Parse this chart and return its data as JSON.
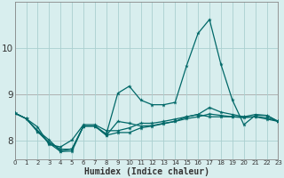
{
  "xlabel": "Humidex (Indice chaleur)",
  "background_color": "#d8eeee",
  "grid_color": "#aacfcf",
  "line_color": "#006868",
  "red_line_y": 9.0,
  "x_values": [
    0,
    1,
    2,
    3,
    4,
    5,
    6,
    7,
    8,
    9,
    10,
    11,
    12,
    13,
    14,
    15,
    16,
    17,
    18,
    19,
    20,
    21,
    22,
    23
  ],
  "series": [
    [
      8.6,
      8.48,
      8.2,
      7.95,
      7.77,
      7.78,
      8.32,
      8.32,
      8.15,
      9.03,
      9.18,
      8.88,
      8.78,
      8.78,
      8.83,
      9.62,
      10.32,
      10.62,
      9.65,
      8.88,
      8.35,
      8.55,
      8.55,
      8.42
    ],
    [
      8.6,
      8.48,
      8.2,
      7.97,
      7.82,
      7.82,
      8.32,
      8.32,
      8.12,
      8.18,
      8.18,
      8.28,
      8.32,
      8.37,
      8.42,
      8.48,
      8.52,
      8.58,
      8.55,
      8.52,
      8.5,
      8.52,
      8.5,
      8.42
    ],
    [
      8.6,
      8.48,
      8.22,
      8.02,
      7.78,
      7.83,
      8.32,
      8.32,
      8.12,
      8.42,
      8.38,
      8.32,
      8.33,
      8.38,
      8.42,
      8.52,
      8.57,
      8.72,
      8.62,
      8.57,
      8.52,
      8.57,
      8.55,
      8.42
    ],
    [
      8.6,
      8.48,
      8.3,
      7.92,
      7.87,
      8.02,
      8.35,
      8.35,
      8.22,
      8.22,
      8.28,
      8.38,
      8.38,
      8.42,
      8.47,
      8.52,
      8.57,
      8.52,
      8.52,
      8.52,
      8.52,
      8.52,
      8.47,
      8.42
    ]
  ],
  "ylim": [
    7.6,
    11.0
  ],
  "yticks": [
    8,
    9,
    10
  ],
  "xlim": [
    0,
    23
  ]
}
